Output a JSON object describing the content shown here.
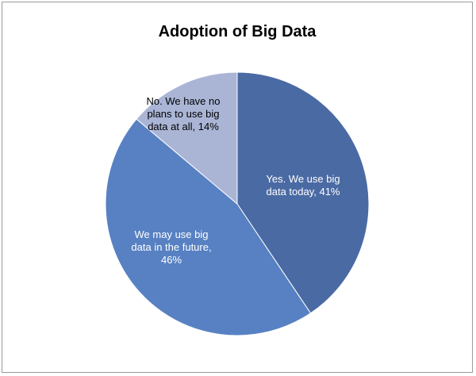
{
  "chart_data": {
    "type": "pie",
    "title": "Adoption of Big Data",
    "slices": [
      {
        "label_lines": [
          "Yes. We use big",
          "data today, 41%"
        ],
        "value": 41,
        "color": "#4a6aa3",
        "text_color": "#ffffff"
      },
      {
        "label_lines": [
          "We may use big",
          "data in the future,",
          "46%"
        ],
        "value": 46,
        "color": "#5781c3",
        "text_color": "#ffffff"
      },
      {
        "label_lines": [
          "No. We have no",
          "plans to use big",
          "data at all, 14%"
        ],
        "value": 14,
        "color": "#aab5d6",
        "text_color": "#000000"
      }
    ],
    "start": "12 o'clock",
    "direction": "clockwise",
    "legend": "none"
  }
}
